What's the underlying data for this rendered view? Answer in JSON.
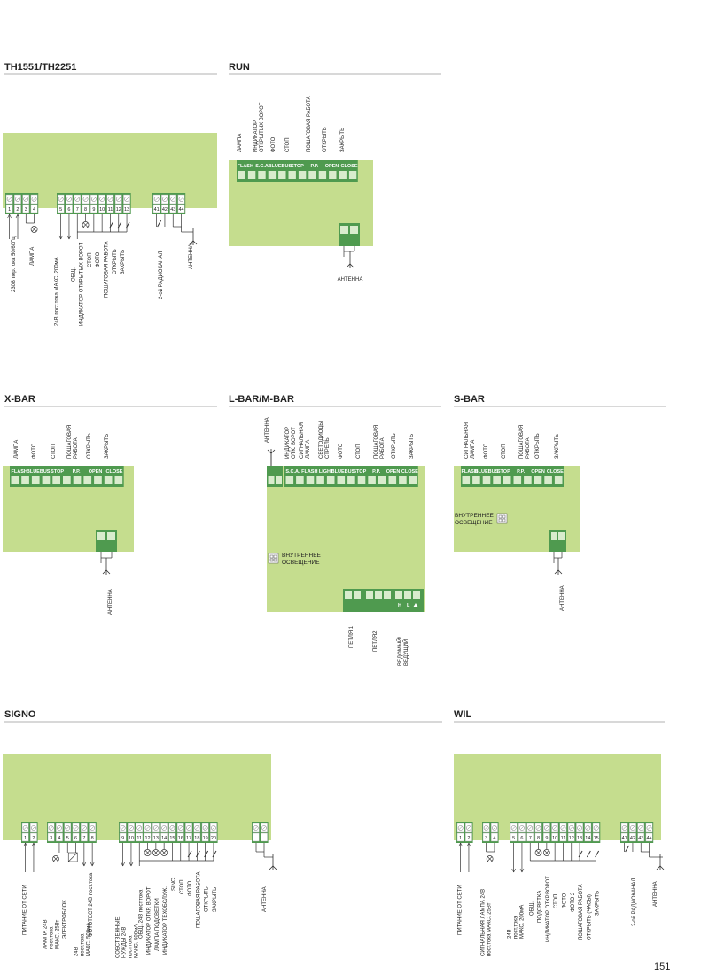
{
  "page_number": "151",
  "colors": {
    "board": "#c5dd8e",
    "block": "#4f9a4f",
    "block_dark": "#3c7f3c",
    "terminal": "#d9eccd",
    "rule": "#999999",
    "line": "#333333"
  },
  "sections": {
    "th1551": {
      "title": "TH1551/TH2251",
      "groups": [
        {
          "nums": [
            "1",
            "2",
            "3",
            "4"
          ]
        },
        {
          "nums": [
            "5",
            "6",
            "7",
            "8",
            "9",
            "10",
            "11",
            "12",
            "13"
          ]
        },
        {
          "nums": [
            "41",
            "42",
            "43",
            "44"
          ]
        }
      ],
      "labels": [
        "230В пер.тока 50/60Гц",
        "ЛАМПА",
        "24В пост.тока МАКС. 200мА",
        "ОБЩ.",
        "ИНДИКАТОР ОТКРЫТЫХ ВОРОТ",
        "СТОП",
        "ФОТО",
        "ПОШАГОВАЯ РАБОТА",
        "ОТКРЫТЬ",
        "ЗАКРЫТЬ",
        "2-ой РАДИОКАНАЛ",
        "АНТЕННА"
      ]
    },
    "run": {
      "title": "RUN",
      "labels": [
        "ЛАМПА",
        "ИНДИКАТОР ОТКРЫТЫХ ВОРОТ",
        "ФОТО",
        "СТОП",
        "ПОШАГОВАЯ РАБОТА",
        "ОТКРЫТЬ",
        "ЗАКРЫТЬ"
      ],
      "strip": [
        "FLASH",
        "S.C.A.",
        "BLUEBUS",
        "STOP",
        "P.P.",
        "OPEN",
        "CLOSE"
      ],
      "antenna": "АНТЕННА"
    },
    "xbar": {
      "title": "X-BAR",
      "labels": [
        "ЛАМПА",
        "ФОТО",
        "СТОП",
        "ПОШАГОВАЯ РАБОТА",
        "ОТКРЫТЬ",
        "ЗАКРЫТЬ"
      ],
      "strip": [
        "FLASH",
        "BLUEBUS",
        "STOP",
        "P.P.",
        "OPEN",
        "CLOSE"
      ],
      "antenna": "АНТЕННА"
    },
    "lbar": {
      "title": "L-BAR/M-BAR",
      "labels": [
        "АНТЕННА",
        "ИНДИКАТОР ОТК. ВОРОТ",
        "СИГНАЛЬНАЯ ЛАМПА",
        "СВЕТОДИОДЫ СТРЕЛЫ",
        "ФОТО",
        "СТОП",
        "ПОШАГОВАЯ РАБОТА",
        "ОТКРЫТЬ",
        "ЗАКРЫТЬ"
      ],
      "strip": [
        "S.C.A.",
        "FLASH",
        "LIGHT",
        "BLUEBUS",
        "STOP",
        "P.P.",
        "OPEN",
        "CLOSE"
      ],
      "inner_light": "ВНУТРЕННЕЕ ОСВЕЩЕНИЕ",
      "bottom": [
        "ПЕТЛЯ 1",
        "ПЕТЛЯ2",
        "ВЕДОМЫЙ/ ВЕДУЩИЙ"
      ],
      "hl": [
        "H",
        "L"
      ]
    },
    "sbar": {
      "title": "S-BAR",
      "labels": [
        "СИГНАЛЬНАЯ ЛАМПА",
        "ФОТО",
        "СТОП",
        "ПОШАГОВАЯ РАБОТА",
        "ОТКРЫТЬ",
        "ЗАКРЫТЬ"
      ],
      "strip": [
        "FLASH",
        "BLUEBUS",
        "STOP",
        "P.P.",
        "OPEN",
        "CLOSE"
      ],
      "inner_light": "ВНУТРЕННЕЕ ОСВЕЩЕНИЕ",
      "antenna": "АНТЕННА"
    },
    "signo": {
      "title": "SIGNO",
      "groups": [
        {
          "nums": [
            "1",
            "2"
          ]
        },
        {
          "nums": [
            "3",
            "4",
            "5",
            "6",
            "7",
            "8"
          ]
        },
        {
          "nums": [
            "9",
            "10",
            "11",
            "12",
            "13",
            "14",
            "15",
            "16",
            "17",
            "18",
            "19",
            "20"
          ]
        },
        {
          "nums": [
            "",
            ""
          ]
        }
      ],
      "labels": [
        "ПИТАНИЕ ОТ СЕТИ",
        "ЛАМПА 24В пост.тока МАКС. 25Вт",
        "ЭЛЕКТРОБЛОК",
        "24В пост.тока МАКС. 500мА",
        "ФОТОТЕСТ 24В пост.тока",
        "СОБСТВЕННЫЕ НУЖДЫ 24В пост.тока МАКС. 500мА",
        "ОБЩ. 24В пост.тока",
        "ИНДИКАТОР ОТКР. ВОРОТ",
        "ЛАМПА ПОДСВЕТКИ",
        "ИНДИКАТОР ТЕХОБСЛУЖ.",
        "SINC",
        "СТОП",
        "ФОТО",
        "ПОШАГОВАЯ РАБОТА",
        "ОТКРЫТЬ",
        "ЗАКРЫТЬ",
        "АНТЕННА"
      ]
    },
    "wil": {
      "title": "WIL",
      "groups": [
        {
          "nums": [
            "1",
            "2"
          ]
        },
        {
          "nums": [
            "3",
            "4"
          ]
        },
        {
          "nums": [
            "5",
            "6",
            "7",
            "8",
            "9",
            "10",
            "11",
            "12",
            "13",
            "14",
            "15"
          ]
        },
        {
          "nums": [
            "41",
            "42",
            "43",
            "44"
          ]
        }
      ],
      "labels": [
        "ПИТАНИЕ ОТ СЕТИ",
        "СИГНАЛЬНАЯ ЛАМПА 24В пост.тока МАКС. 25Вт",
        "24В пост.тока МАКС. 200мА",
        "ОБЩ.",
        "ПОДСВЕТКА",
        "ИНДИКАТОР ОТКР.ВОРОТ",
        "СТОП",
        "ФОТО",
        "ФОТО 2",
        "ПОШАГОВАЯ РАБОТА",
        "ОТКРЫТЬ (ЧАСЫ)",
        "ЗАКРЫТЬ",
        "2-ой РАДИОКАНАЛ",
        "АНТЕННА"
      ]
    }
  }
}
